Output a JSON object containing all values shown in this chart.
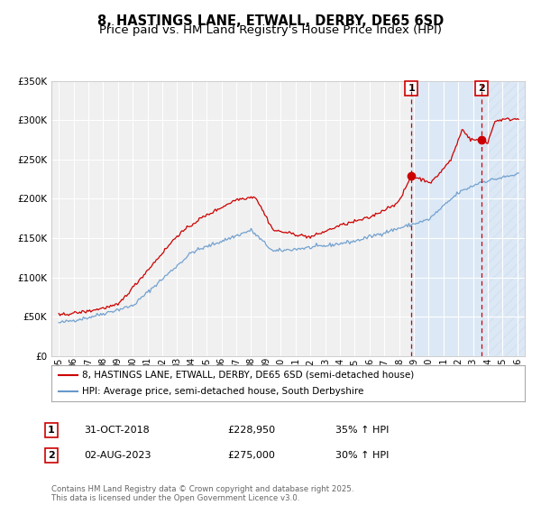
{
  "title": "8, HASTINGS LANE, ETWALL, DERBY, DE65 6SD",
  "subtitle": "Price paid vs. HM Land Registry's House Price Index (HPI)",
  "xlim": [
    1994.5,
    2026.5
  ],
  "ylim": [
    0,
    350000
  ],
  "yticks": [
    0,
    50000,
    100000,
    150000,
    200000,
    250000,
    300000,
    350000
  ],
  "ytick_labels": [
    "£0",
    "£50K",
    "£100K",
    "£150K",
    "£200K",
    "£250K",
    "£300K",
    "£350K"
  ],
  "xticks": [
    1995,
    1996,
    1997,
    1998,
    1999,
    2000,
    2001,
    2002,
    2003,
    2004,
    2005,
    2006,
    2007,
    2008,
    2009,
    2010,
    2011,
    2012,
    2013,
    2014,
    2015,
    2016,
    2017,
    2018,
    2019,
    2020,
    2021,
    2022,
    2023,
    2024,
    2025,
    2026
  ],
  "xtick_labels": [
    "95",
    "96",
    "97",
    "98",
    "99",
    "00",
    "01",
    "02",
    "03",
    "04",
    "05",
    "06",
    "07",
    "08",
    "09",
    "10",
    "11",
    "12",
    "13",
    "14",
    "15",
    "16",
    "17",
    "18",
    "19",
    "20",
    "21",
    "22",
    "23",
    "24",
    "25",
    "26"
  ],
  "line1_color": "#cc0000",
  "line2_color": "#6699cc",
  "vline1_x": 2018.83,
  "vline2_x": 2023.58,
  "vline_color": "#cc0000",
  "marker1_x": 2018.83,
  "marker1_y": 228950,
  "marker2_x": 2023.58,
  "marker2_y": 275000,
  "legend_label1": "8, HASTINGS LANE, ETWALL, DERBY, DE65 6SD (semi-detached house)",
  "legend_label2": "HPI: Average price, semi-detached house, South Derbyshire",
  "table_row1": [
    "1",
    "31-OCT-2018",
    "£228,950",
    "35% ↑ HPI"
  ],
  "table_row2": [
    "2",
    "02-AUG-2023",
    "£275,000",
    "30% ↑ HPI"
  ],
  "footer": "Contains HM Land Registry data © Crown copyright and database right 2025.\nThis data is licensed under the Open Government Licence v3.0.",
  "background_color": "#ffffff",
  "plot_background_color": "#f0f0f0",
  "grid_color": "#ffffff",
  "shaded_color": "#dce8f5",
  "hatch_color": "#c8d8e8",
  "title_fontsize": 10.5,
  "subtitle_fontsize": 9.5,
  "tick_fontsize": 7,
  "axis_fontsize": 7.5
}
